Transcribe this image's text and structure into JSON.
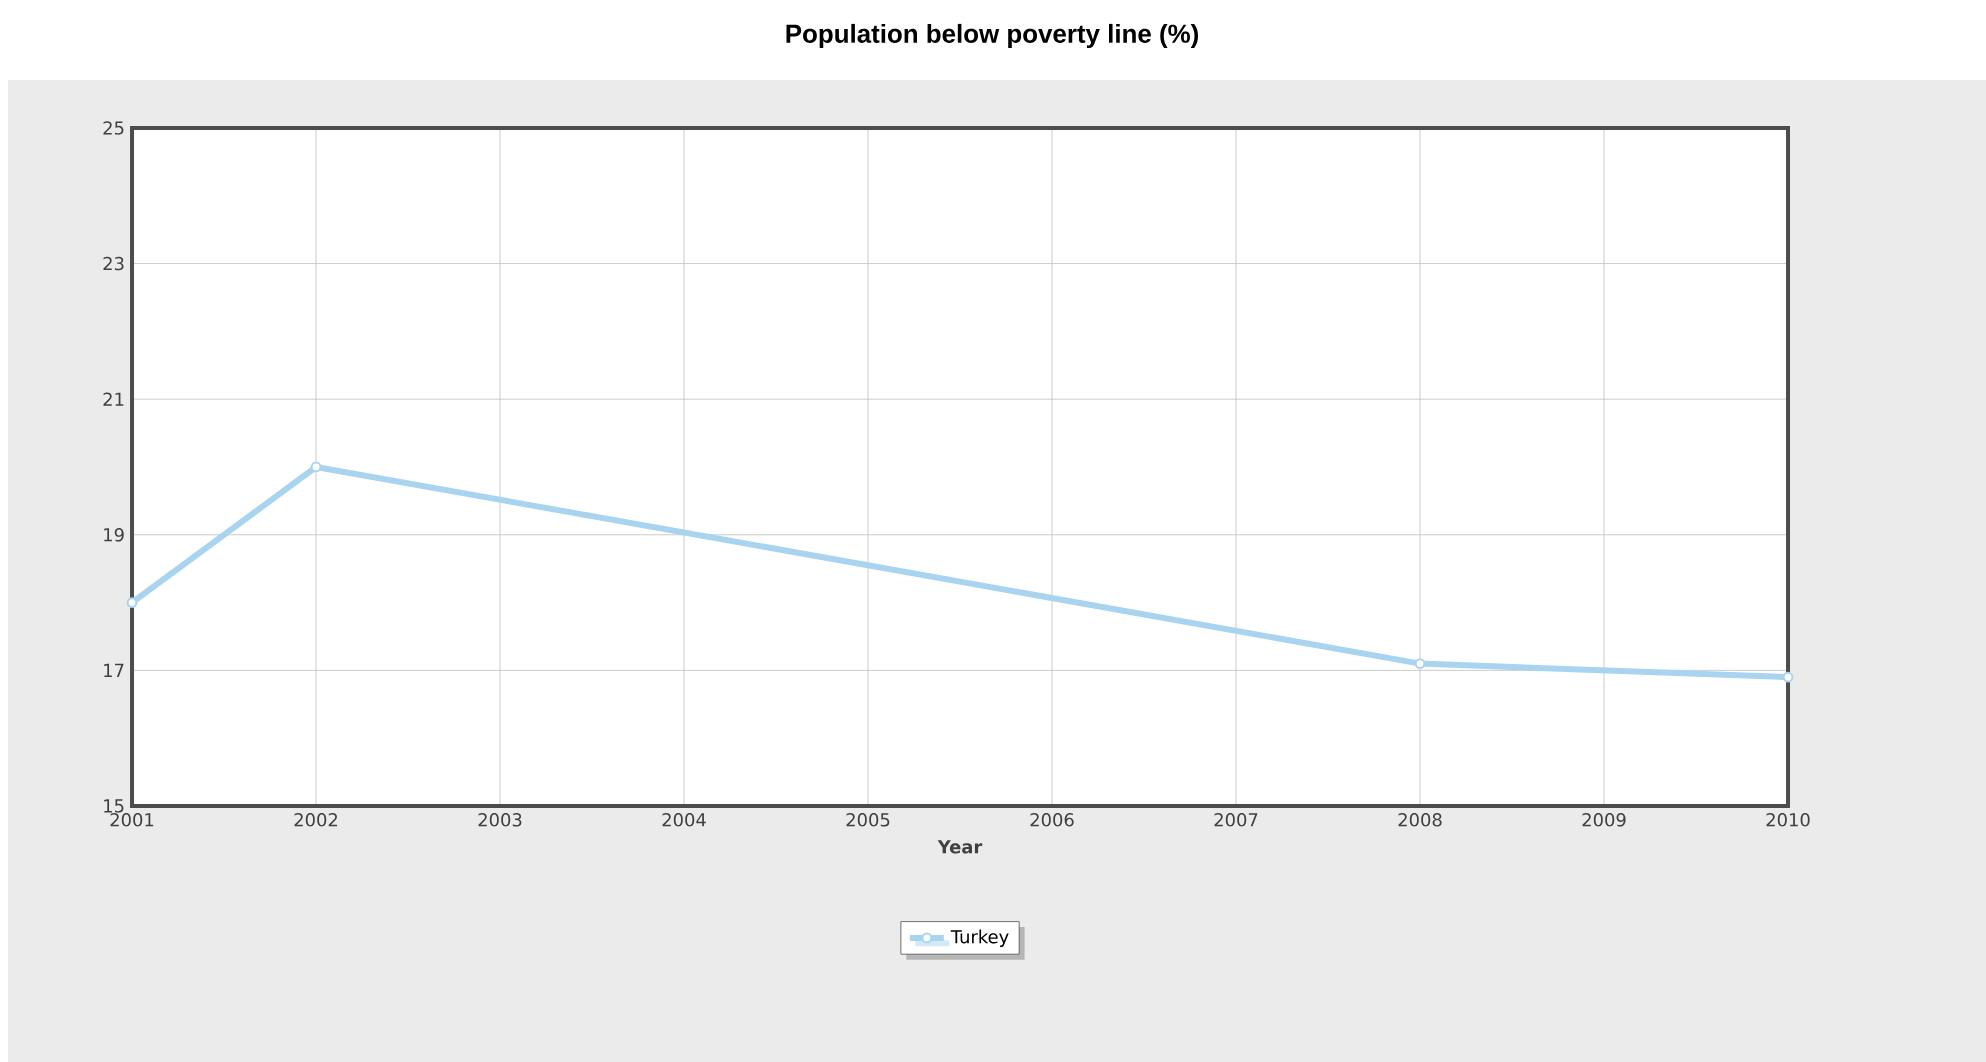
{
  "chart_data": {
    "type": "line",
    "title": "Population below poverty line (%)",
    "xlabel": "Year",
    "x": [
      2001,
      2002,
      2008,
      2010
    ],
    "series": [
      {
        "name": "Turkey",
        "color": "#a8d4f0",
        "values": [
          18,
          20,
          17.1,
          16.9
        ]
      }
    ],
    "xlim": [
      2001,
      2010
    ],
    "xticks": [
      2001,
      2002,
      2003,
      2004,
      2005,
      2006,
      2007,
      2008,
      2009,
      2010
    ],
    "ylim": [
      15,
      25
    ],
    "yticks": [
      15,
      17,
      19,
      21,
      23,
      25
    ],
    "grid": true,
    "legend": "bottom",
    "marker": "circle",
    "line_style": "solid"
  }
}
